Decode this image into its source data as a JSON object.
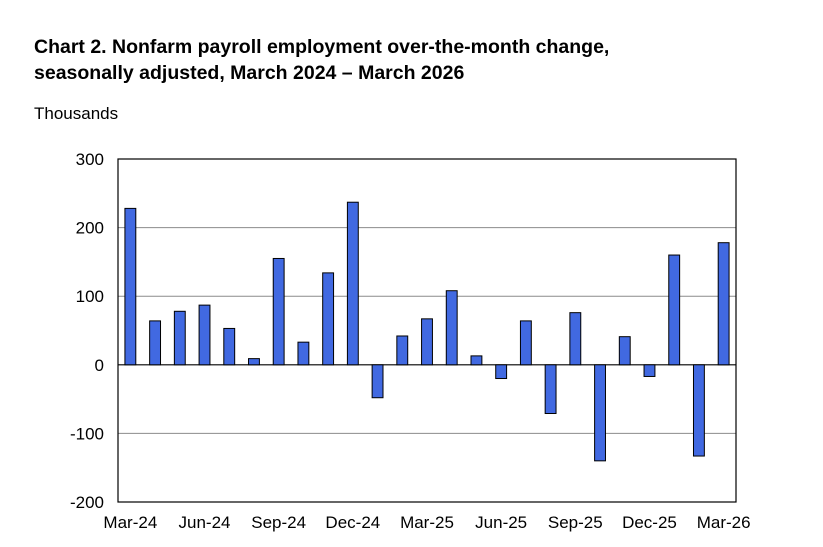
{
  "title_lines": [
    "Chart 2. Nonfarm payroll employment over-the-month change,",
    "seasonally adjusted, March 2024 – March 2026"
  ],
  "chart_data": {
    "type": "bar",
    "title": "Chart 2. Nonfarm payroll employment over-the-month change, seasonally adjusted, March 2024 – March 2026",
    "ylabel": "Thousands",
    "xlabel": "",
    "ylim": [
      -200,
      300
    ],
    "yticks": [
      300,
      200,
      100,
      0,
      -100,
      -200
    ],
    "ytick_labels": [
      "300",
      "200",
      "100",
      "0",
      "-100",
      "-200"
    ],
    "grid": "horizontal",
    "bar_color": "#4169E1",
    "categories": [
      "Mar-24",
      "Apr-24",
      "May-24",
      "Jun-24",
      "Jul-24",
      "Aug-24",
      "Sep-24",
      "Oct-24",
      "Nov-24",
      "Dec-24",
      "Jan-25",
      "Feb-25",
      "Mar-25",
      "Apr-25",
      "May-25",
      "Jun-25",
      "Jul-25",
      "Aug-25",
      "Sep-25",
      "Oct-25",
      "Nov-25",
      "Dec-25",
      "Jan-26",
      "Feb-26",
      "Mar-26"
    ],
    "values": [
      228,
      64,
      78,
      87,
      53,
      9,
      155,
      33,
      134,
      237,
      -48,
      42,
      67,
      108,
      13,
      -20,
      64,
      -71,
      76,
      -140,
      41,
      -17,
      160,
      -133,
      178
    ],
    "xtick_labels": [
      "Mar-24",
      "Jun-24",
      "Sep-24",
      "Dec-24",
      "Mar-25",
      "Jun-25",
      "Sep-25",
      "Dec-25",
      "Mar-26"
    ],
    "xtick_every": 3
  }
}
